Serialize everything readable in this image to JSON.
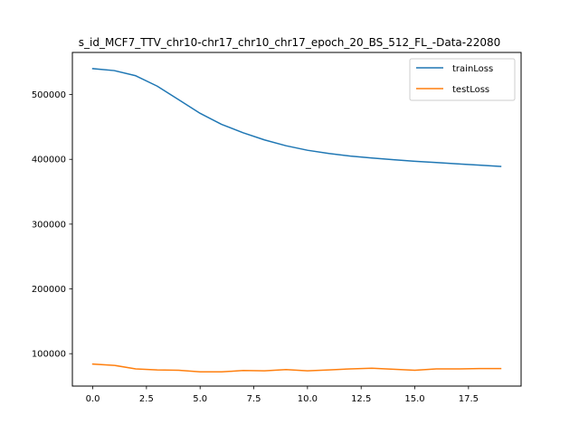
{
  "chart_data": {
    "type": "line",
    "title": "s_id_MCF7_TTV_chr10-chr17_chr10_chr17_epoch_20_BS_512_FL_-Data-22080",
    "xlabel": "",
    "ylabel": "",
    "xlim": [
      -0.95,
      19.95
    ],
    "ylim": [
      50000,
      565000
    ],
    "x_ticks": [
      0.0,
      2.5,
      5.0,
      7.5,
      10.0,
      12.5,
      15.0,
      17.5
    ],
    "x_tick_labels": [
      "0.0",
      "2.5",
      "5.0",
      "7.5",
      "10.0",
      "12.5",
      "15.0",
      "17.5"
    ],
    "y_ticks": [
      100000,
      200000,
      300000,
      400000,
      500000
    ],
    "y_tick_labels": [
      "100000",
      "200000",
      "300000",
      "400000",
      "500000"
    ],
    "legend_position": "top-right",
    "grid": false,
    "x": [
      0,
      1,
      2,
      3,
      4,
      5,
      6,
      7,
      8,
      9,
      10,
      11,
      12,
      13,
      14,
      15,
      16,
      17,
      18,
      19
    ],
    "series": [
      {
        "name": "trainLoss",
        "color": "#1f77b4",
        "values": [
          540000,
          537000,
          529000,
          513000,
          492000,
          471000,
          454000,
          441000,
          430000,
          421000,
          414000,
          409000,
          405000,
          402000,
          399500,
          397000,
          395000,
          393000,
          391000,
          389000
        ]
      },
      {
        "name": "testLoss",
        "color": "#ff7f0e",
        "values": [
          84000,
          82000,
          76500,
          75000,
          74500,
          72000,
          72000,
          74000,
          73500,
          75500,
          73500,
          75000,
          76500,
          77500,
          76000,
          74500,
          76500,
          76500,
          77000,
          77000
        ]
      }
    ]
  }
}
